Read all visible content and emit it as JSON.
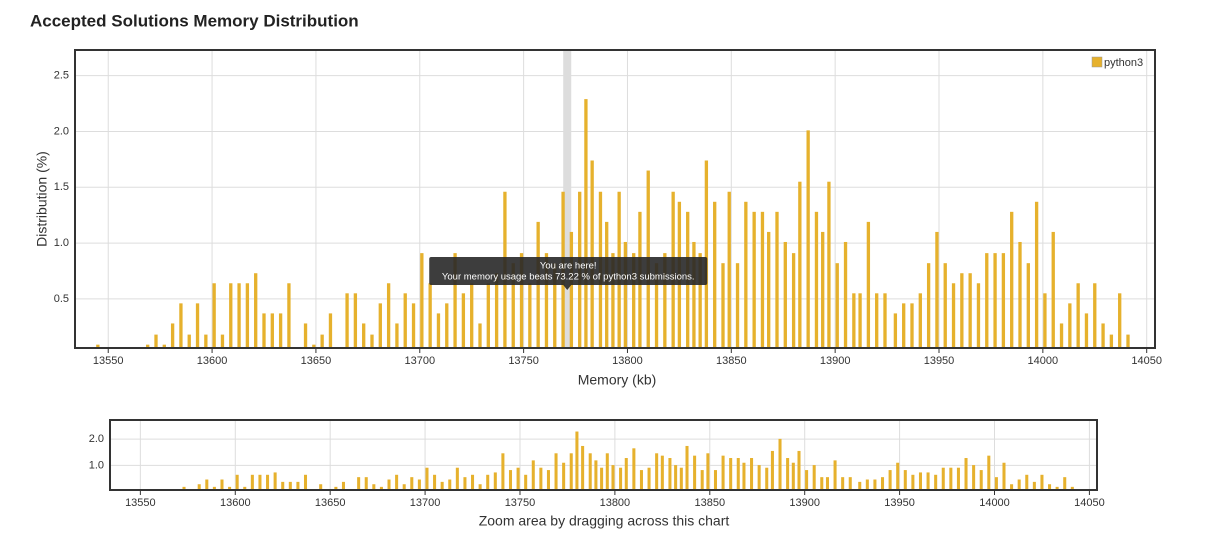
{
  "chart_data": {
    "type": "bar",
    "title": "Accepted Solutions Memory Distribution",
    "xlabel": "Memory (kb)",
    "ylabel": "Distribution (%)",
    "legend": "top-right",
    "grid": true,
    "xlim": [
      13534,
      14054
    ],
    "xticks": [
      13550,
      13600,
      13650,
      13700,
      13750,
      13800,
      13850,
      13900,
      13950,
      14000,
      14050
    ],
    "ylim": [
      0.06,
      2.73
    ],
    "yticks": [
      0.5,
      {
        "value": 1.0,
        "label": "1.0"
      },
      1.5,
      {
        "value": 2.0,
        "label": "2.0"
      },
      2.5
    ],
    "highlight": {
      "x": 13771,
      "title": "You are here!",
      "text": "Your memory usage beats 73.22 % of python3 submissions."
    },
    "x": [
      13545,
      13569,
      13573,
      13577,
      13581,
      13585,
      13589,
      13593,
      13597,
      13601,
      13605,
      13609,
      13613,
      13617,
      13621,
      13625,
      13629,
      13633,
      13637,
      13645,
      13649,
      13653,
      13657,
      13665,
      13669,
      13673,
      13677,
      13681,
      13685,
      13689,
      13693,
      13697,
      13701,
      13705,
      13709,
      13713,
      13717,
      13721,
      13725,
      13729,
      13733,
      13737,
      13741,
      13745,
      13749,
      13753,
      13757,
      13761,
      13765,
      13769,
      13773,
      13777,
      13780,
      13783,
      13787,
      13790,
      13793,
      13796,
      13799,
      13803,
      13806,
      13810,
      13814,
      13818,
      13822,
      13825,
      13829,
      13832,
      13835,
      13838,
      13842,
      13846,
      13849,
      13853,
      13857,
      13861,
      13865,
      13868,
      13872,
      13876,
      13880,
      13883,
      13887,
      13891,
      13894,
      13897,
      13901,
      13905,
      13909,
      13912,
      13916,
      13920,
      13924,
      13929,
      13933,
      13937,
      13941,
      13945,
      13949,
      13953,
      13957,
      13961,
      13965,
      13969,
      13973,
      13977,
      13981,
      13985,
      13989,
      13993,
      13997,
      14001,
      14005,
      14009,
      14013,
      14017,
      14021,
      14025,
      14029,
      14033,
      14037,
      14041
    ],
    "series": [
      {
        "name": "python3",
        "color": "#e6b12d",
        "values": [
          0.09,
          0.09,
          0.18,
          0.09,
          0.28,
          0.46,
          0.18,
          0.46,
          0.18,
          0.64,
          0.18,
          0.64,
          0.64,
          0.64,
          0.73,
          0.37,
          0.37,
          0.37,
          0.64,
          0.28,
          0.09,
          0.18,
          0.37,
          0.55,
          0.55,
          0.28,
          0.18,
          0.46,
          0.64,
          0.28,
          0.55,
          0.46,
          0.91,
          0.64,
          0.37,
          0.46,
          0.91,
          0.55,
          0.64,
          0.28,
          0.64,
          0.73,
          1.46,
          0.82,
          0.91,
          0.64,
          1.19,
          0.91,
          0.82,
          1.46,
          1.1,
          1.46,
          2.29,
          1.74,
          1.46,
          1.19,
          0.91,
          1.46,
          1.01,
          0.91,
          1.28,
          1.65,
          0.82,
          0.91,
          1.46,
          1.37,
          1.28,
          1.01,
          0.91,
          1.74,
          1.37,
          0.82,
          1.46,
          0.82,
          1.37,
          1.28,
          1.28,
          1.1,
          1.28,
          1.01,
          0.91,
          1.55,
          2.01,
          1.28,
          1.1,
          1.55,
          0.82,
          1.01,
          0.55,
          0.55,
          1.19,
          0.55,
          0.55,
          0.37,
          0.46,
          0.46,
          0.55,
          0.82,
          1.1,
          0.82,
          0.64,
          0.73,
          0.73,
          0.64,
          0.91,
          0.91,
          0.91,
          1.28,
          1.01,
          0.82,
          1.37,
          0.55,
          1.1,
          0.28,
          0.46,
          0.64,
          0.37,
          0.64,
          0.28,
          0.18,
          0.55,
          0.18
        ]
      }
    ],
    "navigator": {
      "xlabel": "Zoom area by dragging across this chart",
      "yticks": [
        {
          "value": 1.0,
          "label": "1.0"
        },
        {
          "value": 2.0,
          "label": "2.0"
        }
      ]
    }
  }
}
